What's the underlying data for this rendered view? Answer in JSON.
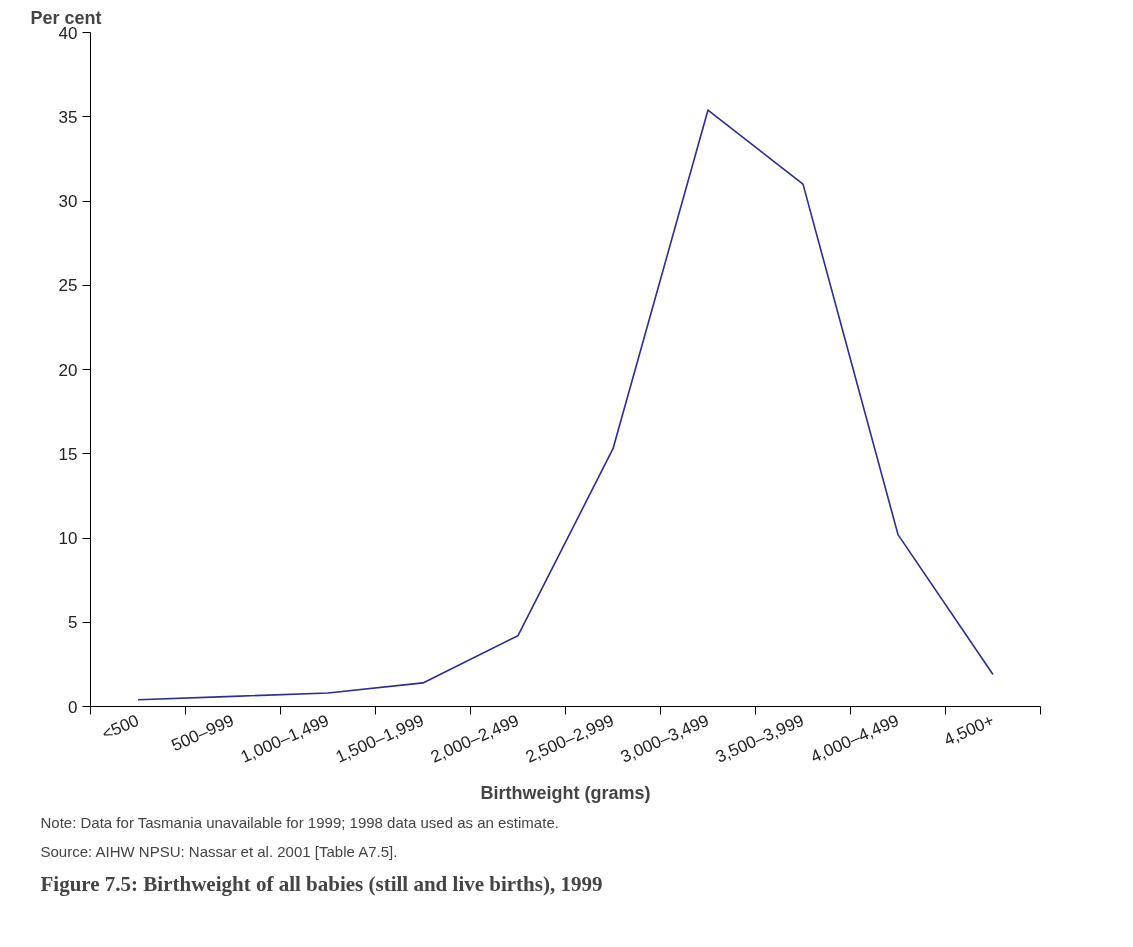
{
  "chart_data": {
    "type": "line",
    "title": "Figure 7.5: Birthweight of all babies (still and live births), 1999",
    "xlabel": "Birthweight (grams)",
    "ylabel": "Per cent",
    "categories": [
      "<500",
      "500–999",
      "1,000–1,499",
      "1,500–1,999",
      "2,000–2,499",
      "2,500–2,999",
      "3,000–3,499",
      "3,500–3,999",
      "4,000–4,499",
      "4,500+"
    ],
    "series": [
      {
        "color": "#2b2e8f",
        "values": [
          0.4,
          0.6,
          0.8,
          1.4,
          4.2,
          15.3,
          35.4,
          31.0,
          10.2,
          1.9
        ]
      }
    ],
    "ylim": [
      0,
      40
    ],
    "yticks": [
      0,
      5,
      10,
      15,
      20,
      25,
      30,
      35,
      40
    ],
    "grid": false,
    "annotations": [
      "Note: Data for Tasmania unavailable for 1999; 1998 data used as an estimate.",
      "Source: AIHW NPSU: Nassar et al. 2001 [Table A7.5]."
    ]
  }
}
